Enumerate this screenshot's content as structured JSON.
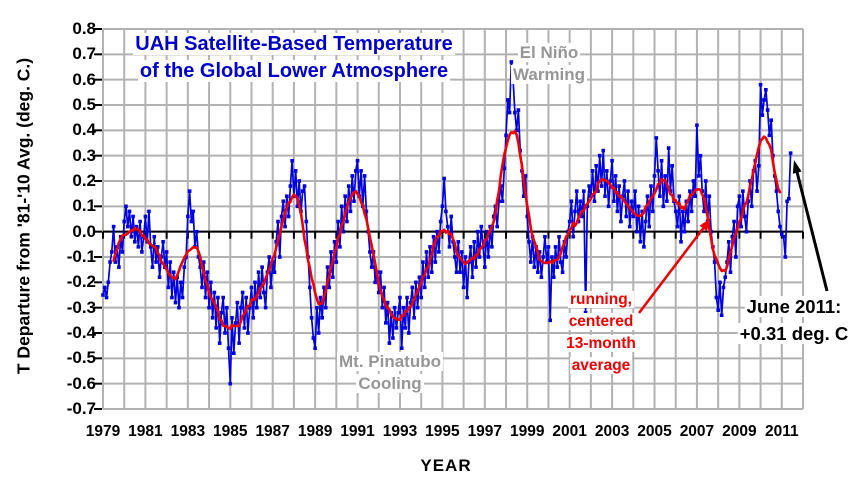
{
  "colors": {
    "monthly_line": "#0000dd",
    "average_line": "#ee0000",
    "title_text": "#0000cc",
    "gray_annotation": "#969696",
    "grid": "#b2b2b2",
    "zero_axis": "#000000",
    "black_text": "#000000"
  },
  "chart_data": {
    "type": "line",
    "title_line1": "UAH Satellite-Based Temperature",
    "title_line2": "of the Global Lower Atmosphere",
    "xlabel": "YEAR",
    "ylabel": "T Departure from '81-'10 Avg. (deg. C.)",
    "xlim": [
      1979,
      2012
    ],
    "ylim": [
      -0.7,
      0.8
    ],
    "grid": true,
    "y_tick_values": [
      0.8,
      0.7,
      0.6,
      0.5,
      0.4,
      0.3,
      0.2,
      0.1,
      0.0,
      -0.1,
      -0.2,
      -0.3,
      -0.4,
      -0.5,
      -0.6,
      -0.7
    ],
    "x_tick_years": [
      1979,
      1981,
      1983,
      1985,
      1987,
      1989,
      1991,
      1993,
      1995,
      1997,
      1999,
      2001,
      2003,
      2005,
      2007,
      2009,
      2011
    ],
    "series": [
      {
        "name": "monthly global lower-atmosphere temperature anomaly",
        "style": "line+square-markers",
        "color": "#0000dd",
        "start_year": 1979,
        "start_month": 1,
        "monthly_values": [
          -0.25,
          -0.22,
          -0.26,
          -0.2,
          -0.12,
          -0.08,
          0.02,
          -0.12,
          -0.06,
          -0.14,
          -0.02,
          -0.08,
          0.04,
          0.1,
          0.02,
          0.08,
          -0.02,
          0.06,
          -0.04,
          0.02,
          -0.06,
          0.04,
          -0.08,
          -0.02,
          0.06,
          -0.04,
          0.08,
          -0.06,
          -0.14,
          -0.02,
          -0.12,
          -0.06,
          -0.18,
          -0.1,
          -0.04,
          -0.14,
          -0.08,
          -0.22,
          -0.12,
          -0.26,
          -0.16,
          -0.28,
          -0.18,
          -0.3,
          -0.2,
          -0.26,
          -0.14,
          -0.1,
          0.06,
          0.16,
          0.04,
          0.08,
          -0.06,
          0.0,
          -0.1,
          -0.14,
          -0.22,
          -0.12,
          -0.26,
          -0.16,
          -0.3,
          -0.2,
          -0.34,
          -0.24,
          -0.38,
          -0.26,
          -0.44,
          -0.32,
          -0.26,
          -0.4,
          -0.3,
          -0.46,
          -0.6,
          -0.34,
          -0.48,
          -0.36,
          -0.28,
          -0.44,
          -0.3,
          -0.24,
          -0.38,
          -0.26,
          -0.4,
          -0.3,
          -0.22,
          -0.34,
          -0.2,
          -0.3,
          -0.16,
          -0.26,
          -0.14,
          -0.24,
          -0.3,
          -0.16,
          -0.1,
          -0.22,
          -0.12,
          -0.16,
          -0.04,
          0.04,
          -0.1,
          0.06,
          0.12,
          0.02,
          0.14,
          0.06,
          0.18,
          0.28,
          0.14,
          0.24,
          0.1,
          0.2,
          0.08,
          0.16,
          0.18,
          0.04,
          -0.1,
          -0.22,
          -0.34,
          -0.42,
          -0.46,
          -0.3,
          -0.4,
          -0.26,
          -0.34,
          -0.22,
          -0.3,
          -0.14,
          -0.22,
          -0.08,
          -0.18,
          -0.04,
          -0.12,
          0.04,
          -0.06,
          0.1,
          0.0,
          0.14,
          0.04,
          0.18,
          0.08,
          0.22,
          0.12,
          0.24,
          0.28,
          0.14,
          0.24,
          0.1,
          0.22,
          0.08,
          0.0,
          -0.08,
          -0.14,
          -0.08,
          -0.2,
          -0.16,
          -0.24,
          -0.16,
          -0.3,
          -0.22,
          -0.36,
          -0.28,
          -0.44,
          -0.32,
          -0.42,
          -0.3,
          -0.38,
          -0.32,
          -0.26,
          -0.46,
          -0.3,
          -0.38,
          -0.26,
          -0.4,
          -0.28,
          -0.22,
          -0.34,
          -0.2,
          -0.3,
          -0.18,
          -0.26,
          -0.12,
          -0.22,
          -0.08,
          -0.18,
          -0.06,
          -0.16,
          -0.02,
          -0.12,
          0.0,
          -0.08,
          0.04,
          0.1,
          0.21,
          0.08,
          0.02,
          -0.06,
          0.06,
          -0.04,
          -0.1,
          -0.16,
          -0.04,
          -0.16,
          -0.08,
          -0.22,
          -0.1,
          -0.26,
          -0.12,
          -0.06,
          -0.18,
          -0.04,
          -0.14,
          0.0,
          -0.1,
          0.02,
          -0.06,
          -0.14,
          0.0,
          -0.1,
          0.02,
          -0.06,
          0.06,
          0.1,
          0.02,
          0.12,
          0.18,
          0.12,
          0.25,
          0.38,
          0.52,
          0.47,
          0.67,
          0.6,
          0.47,
          0.4,
          0.48,
          0.32,
          0.24,
          0.14,
          0.22,
          0.06,
          -0.04,
          -0.12,
          -0.02,
          -0.14,
          -0.06,
          -0.16,
          -0.08,
          -0.18,
          -0.1,
          -0.02,
          -0.12,
          -0.06,
          -0.35,
          -0.1,
          -0.18,
          -0.06,
          -0.14,
          -0.02,
          -0.12,
          -0.16,
          -0.04,
          -0.1,
          0.0,
          0.04,
          0.12,
          -0.02,
          0.08,
          0.16,
          0.04,
          0.12,
          0.06,
          0.16,
          -0.32,
          0.1,
          0.18,
          0.14,
          0.24,
          0.12,
          0.26,
          0.16,
          0.3,
          0.18,
          0.32,
          0.14,
          0.24,
          0.1,
          0.2,
          0.28,
          0.12,
          0.22,
          0.08,
          0.18,
          0.04,
          0.14,
          0.2,
          0.06,
          0.16,
          0.02,
          0.12,
          0.06,
          0.16,
          0.0,
          0.1,
          -0.04,
          0.08,
          -0.06,
          0.04,
          0.14,
          0.02,
          0.18,
          0.08,
          0.22,
          0.37,
          0.24,
          0.14,
          0.28,
          0.1,
          0.22,
          0.12,
          0.33,
          0.16,
          0.26,
          0.12,
          0.08,
          0.02,
          0.14,
          -0.04,
          0.08,
          0.0,
          0.12,
          0.04,
          0.16,
          0.08,
          0.2,
          0.14,
          0.42,
          0.22,
          0.3,
          0.16,
          0.08,
          0.2,
          0.04,
          0.14,
          0.0,
          -0.06,
          -0.12,
          -0.26,
          -0.31,
          -0.2,
          -0.33,
          -0.22,
          -0.18,
          -0.12,
          -0.04,
          -0.16,
          -0.02,
          0.04,
          -0.1,
          0.1,
          0.14,
          0.02,
          0.16,
          0.06,
          0.0,
          0.12,
          0.2,
          0.1,
          0.24,
          0.28,
          0.16,
          0.26,
          0.58,
          0.46,
          0.52,
          0.56,
          0.48,
          0.38,
          0.44,
          0.3,
          0.22,
          0.16,
          0.08,
          0.02,
          -0.01,
          -0.02,
          -0.1,
          0.12,
          0.13,
          0.31
        ]
      },
      {
        "name": "running, centered 13-month average",
        "style": "line",
        "color": "#ee0000",
        "derived_from": "13-month centered mean of monthly series"
      }
    ],
    "annotations": {
      "el_nino": {
        "line1": "El Niño",
        "line2": "Warming",
        "color": "#969696"
      },
      "pinatubo": {
        "line1": "Mt. Pinatubo",
        "line2": "Cooling",
        "color": "#969696"
      },
      "running_avg": {
        "line1": "running,",
        "line2": "centered",
        "line3": "13-month",
        "line4": "average",
        "color": "#ee0000"
      },
      "june_2011": {
        "line1": "June 2011:",
        "line2": "+0.31 deg. C",
        "color": "#000000"
      }
    },
    "last_point": {
      "month": "June 2011",
      "value": 0.31
    }
  }
}
